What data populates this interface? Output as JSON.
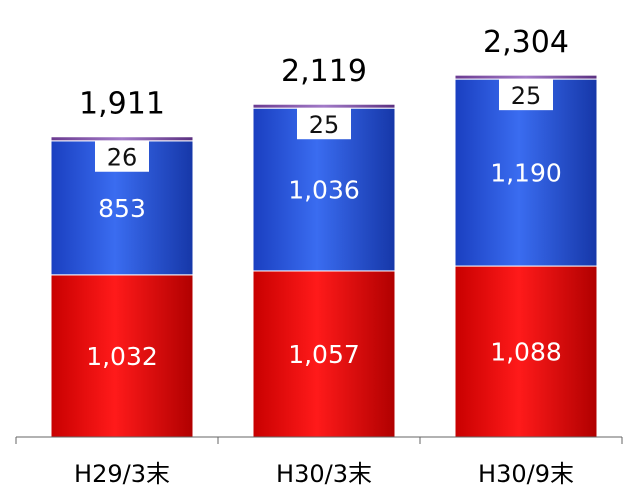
{
  "chart_data": {
    "type": "bar",
    "stacked": true,
    "title": "",
    "xlabel": "",
    "ylabel": "",
    "categories": [
      "H29/3末",
      "H30/3末",
      "H30/9末"
    ],
    "series": [
      {
        "values": [
          1032,
          1057,
          1088
        ],
        "color": "#e60000"
      },
      {
        "values": [
          853,
          1036,
          1190
        ],
        "color": "#1f4fd8"
      },
      {
        "values": [
          26,
          25,
          25
        ],
        "color": "#7a4aa0"
      }
    ],
    "totals": [
      "1,911",
      "2,119",
      "2,304"
    ],
    "value_labels": [
      [
        "1,032",
        "1,057",
        "1,088"
      ],
      [
        "853",
        "1,036",
        "1,190"
      ],
      [
        "26",
        "25",
        "25"
      ]
    ],
    "ylim": [
      0,
      2304
    ],
    "grid": false,
    "legend": "none"
  }
}
